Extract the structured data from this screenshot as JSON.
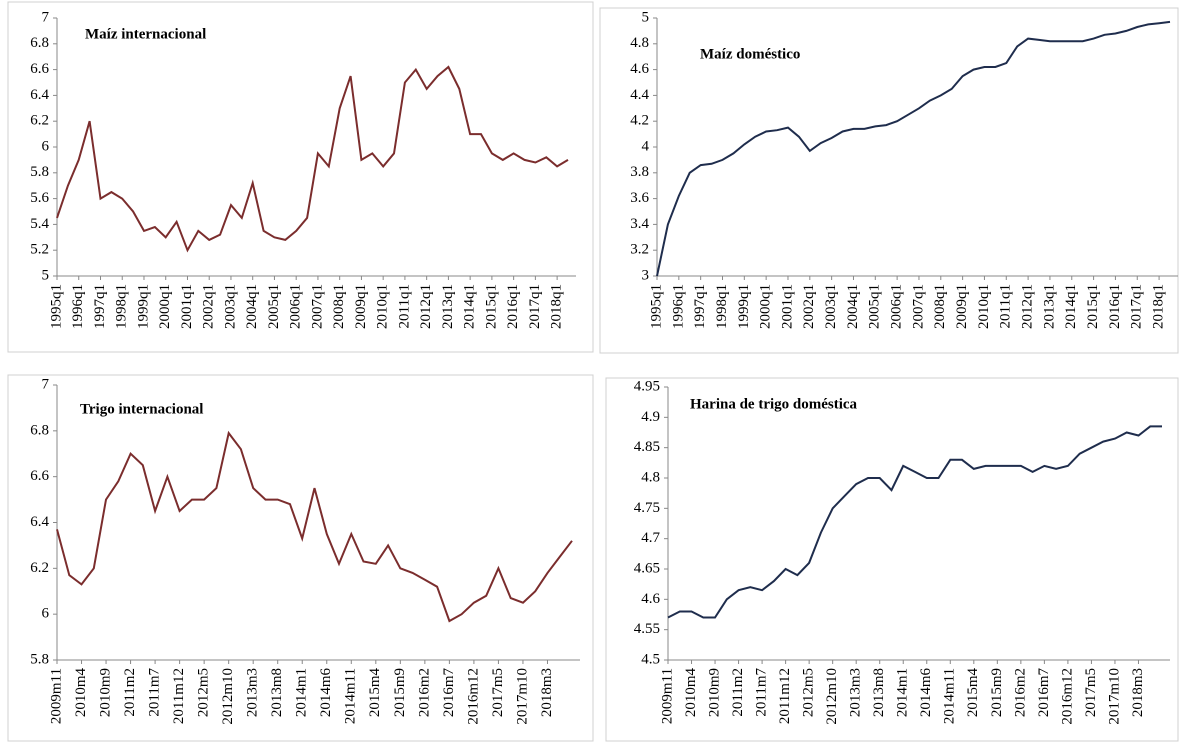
{
  "chart_data": [
    {
      "type": "line",
      "title": "Maíz internacional",
      "color": "#7b2d2d",
      "categories": [
        "1995q1",
        null,
        "1996q1",
        null,
        "1997q1",
        null,
        "1998q1",
        null,
        "1999q1",
        null,
        "2000q1",
        null,
        "2001q1",
        null,
        "2002q1",
        null,
        "2003q1",
        null,
        "2004q1",
        null,
        "2005q1",
        null,
        "2006q1",
        null,
        "2007q1",
        null,
        "2008q1",
        null,
        "2009q1",
        null,
        "2010q1",
        null,
        "2011q1",
        null,
        "2012q1",
        null,
        "2013q1",
        null,
        "2014q1",
        null,
        "2015q1",
        null,
        "2016q1",
        null,
        "2017q1",
        null,
        "2018q1",
        null
      ],
      "values": [
        5.45,
        5.7,
        5.9,
        6.2,
        5.6,
        5.65,
        5.6,
        5.5,
        5.35,
        5.38,
        5.3,
        5.42,
        5.2,
        5.35,
        5.28,
        5.32,
        5.55,
        5.45,
        5.72,
        5.35,
        5.3,
        5.28,
        5.35,
        5.45,
        5.95,
        5.85,
        6.3,
        6.55,
        5.9,
        5.95,
        5.85,
        5.95,
        6.5,
        6.6,
        6.45,
        6.55,
        6.62,
        6.45,
        6.1,
        6.1,
        5.95,
        5.9,
        5.95,
        5.9,
        5.88,
        5.92,
        5.85,
        5.9
      ],
      "ylim": [
        5,
        7
      ],
      "yticks": [
        5,
        5.2,
        5.4,
        5.6,
        5.8,
        6,
        6.2,
        6.4,
        6.6,
        6.8,
        7
      ]
    },
    {
      "type": "line",
      "title": "Maíz doméstico",
      "color": "#1f2d4d",
      "categories": [
        "1995q1",
        null,
        "1996q1",
        null,
        "1997q1",
        null,
        "1998q1",
        null,
        "1999q1",
        null,
        "2000q1",
        null,
        "2001q1",
        null,
        "2002q1",
        null,
        "2003q1",
        null,
        "2004q1",
        null,
        "2005q1",
        null,
        "2006q1",
        null,
        "2007q1",
        null,
        "2008q1",
        null,
        "2009q1",
        null,
        "2010q1",
        null,
        "2011q1",
        null,
        "2012q1",
        null,
        "2013q1",
        null,
        "2014q1",
        null,
        "2015q1",
        null,
        "2016q1",
        null,
        "2017q1",
        null,
        "2018q1",
        null
      ],
      "values": [
        3.0,
        3.4,
        3.62,
        3.8,
        3.86,
        3.87,
        3.9,
        3.95,
        4.02,
        4.08,
        4.12,
        4.13,
        4.15,
        4.08,
        3.97,
        4.03,
        4.07,
        4.12,
        4.14,
        4.14,
        4.16,
        4.17,
        4.2,
        4.25,
        4.3,
        4.36,
        4.4,
        4.45,
        4.55,
        4.6,
        4.62,
        4.62,
        4.65,
        4.78,
        4.84,
        4.83,
        4.82,
        4.82,
        4.82,
        4.82,
        4.84,
        4.87,
        4.88,
        4.9,
        4.93,
        4.95,
        4.96,
        4.97
      ],
      "ylim": [
        3,
        5
      ],
      "yticks": [
        3,
        3.2,
        3.4,
        3.6,
        3.8,
        4,
        4.2,
        4.4,
        4.6,
        4.8,
        5
      ]
    },
    {
      "type": "line",
      "title": "Trigo internacional",
      "color": "#7b2d2d",
      "categories": [
        "2009m11",
        null,
        "2010m4",
        null,
        "2010m9",
        null,
        "2011m2",
        null,
        "2011m7",
        null,
        "2011m12",
        null,
        "2012m5",
        null,
        "2012m10",
        null,
        "2013m3",
        null,
        "2013m8",
        null,
        "2014m1",
        null,
        "2014m6",
        null,
        "2014m11",
        null,
        "2015m4",
        null,
        "2015m9",
        null,
        "2016m2",
        null,
        "2016m7",
        null,
        "2016m12",
        null,
        "2017m5",
        null,
        "2017m10",
        null,
        "2018m3",
        null,
        null
      ],
      "values": [
        6.37,
        6.17,
        6.13,
        6.2,
        6.5,
        6.58,
        6.7,
        6.65,
        6.45,
        6.6,
        6.45,
        6.5,
        6.5,
        6.55,
        6.79,
        6.72,
        6.55,
        6.5,
        6.5,
        6.48,
        6.33,
        6.55,
        6.35,
        6.22,
        6.35,
        6.23,
        6.22,
        6.3,
        6.2,
        6.18,
        6.15,
        6.12,
        5.97,
        6.0,
        6.05,
        6.08,
        6.2,
        6.07,
        6.05,
        6.1,
        6.18,
        6.25,
        6.32
      ],
      "ylim": [
        5.8,
        7
      ],
      "yticks": [
        5.8,
        6,
        6.2,
        6.4,
        6.6,
        6.8,
        7
      ]
    },
    {
      "type": "line",
      "title": "Harina de trigo doméstica",
      "color": "#1f2d4d",
      "categories": [
        "2009m11",
        null,
        "2010m4",
        null,
        "2010m9",
        null,
        "2011m2",
        null,
        "2011m7",
        null,
        "2011m12",
        null,
        "2012m5",
        null,
        "2012m10",
        null,
        "2013m3",
        null,
        "2013m8",
        null,
        "2014m1",
        null,
        "2014m6",
        null,
        "2014m11",
        null,
        "2015m4",
        null,
        "2015m9",
        null,
        "2016m2",
        null,
        "2016m7",
        null,
        "2016m12",
        null,
        "2017m5",
        null,
        "2017m10",
        null,
        "2018m3",
        null,
        null
      ],
      "values": [
        4.57,
        4.58,
        4.58,
        4.57,
        4.57,
        4.6,
        4.615,
        4.62,
        4.615,
        4.63,
        4.65,
        4.64,
        4.66,
        4.71,
        4.75,
        4.77,
        4.79,
        4.8,
        4.8,
        4.78,
        4.82,
        4.81,
        4.8,
        4.8,
        4.83,
        4.83,
        4.815,
        4.82,
        4.82,
        4.82,
        4.82,
        4.81,
        4.82,
        4.815,
        4.82,
        4.84,
        4.85,
        4.86,
        4.865,
        4.875,
        4.87,
        4.885,
        4.885
      ],
      "ylim": [
        4.5,
        4.95
      ],
      "yticks": [
        4.5,
        4.55,
        4.6,
        4.65,
        4.7,
        4.75,
        4.8,
        4.85,
        4.9,
        4.95
      ]
    }
  ]
}
